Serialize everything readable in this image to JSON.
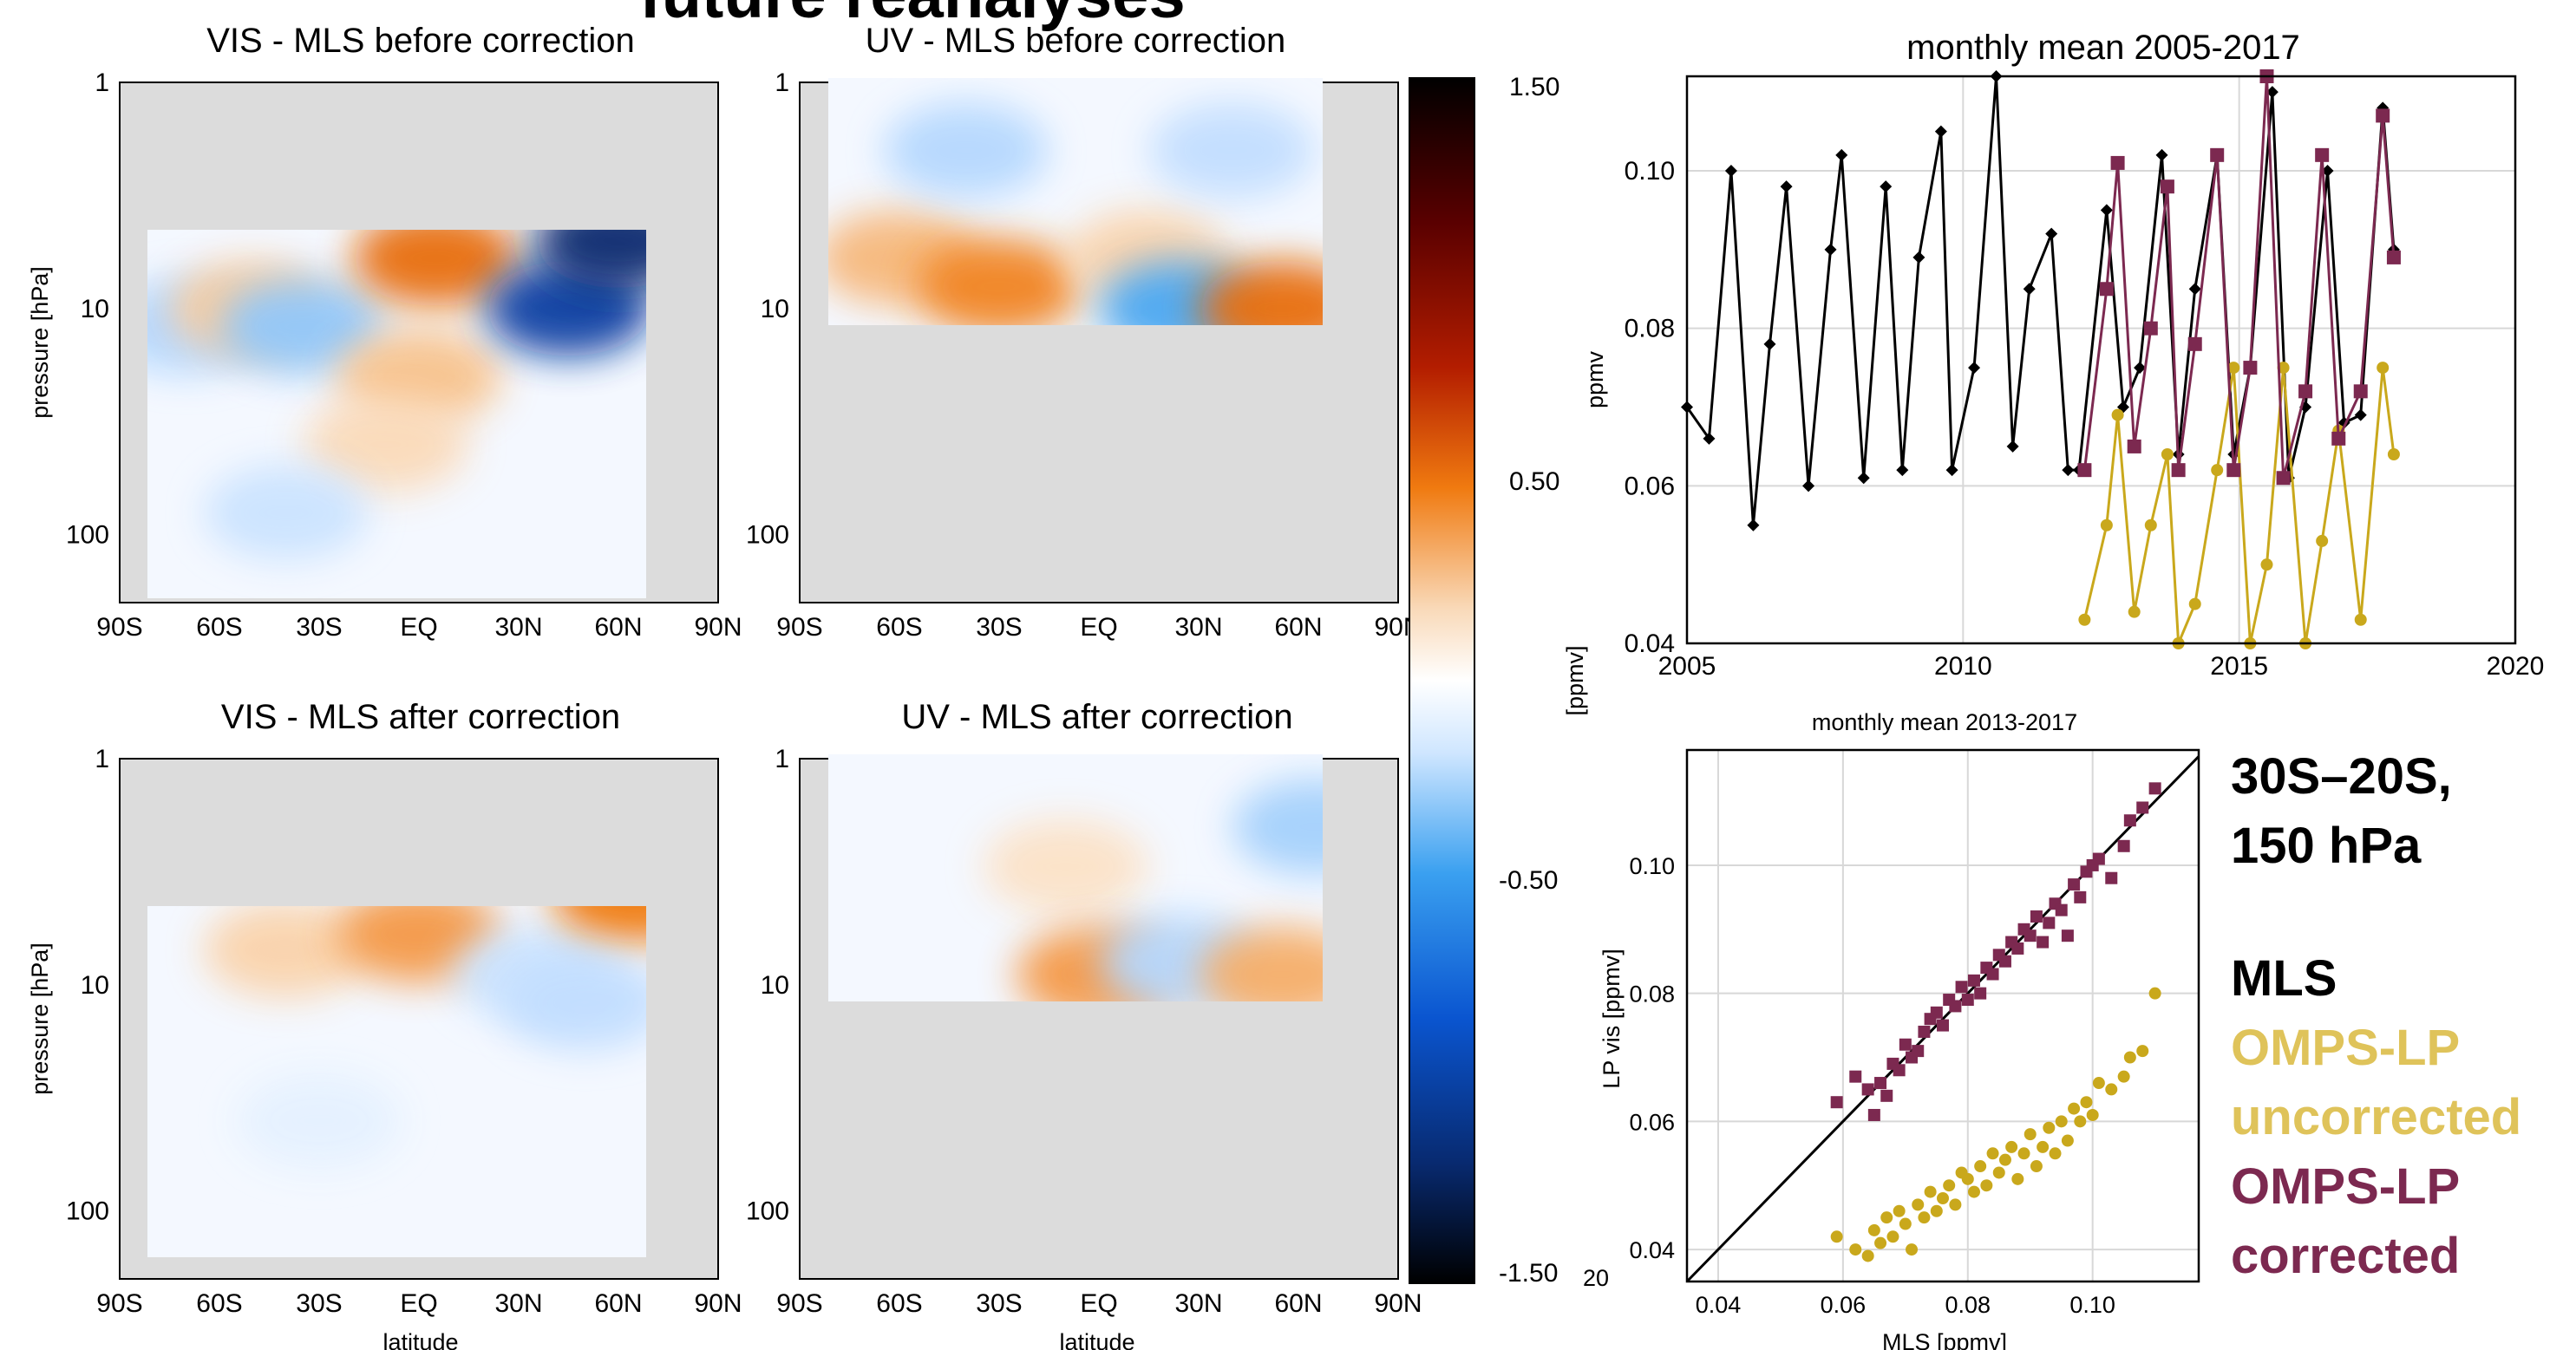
{
  "page": {
    "header": "future reanalyses",
    "location_label": "30S–20S,\n150 hPa",
    "legend": [
      {
        "label": "MLS",
        "color": "#000000"
      },
      {
        "label": "OMPS-LP\nuncorrected",
        "color": "#dfc35a"
      },
      {
        "label": "OMPS-LP\ncorrected",
        "color": "#7c2950"
      }
    ]
  },
  "chart_data": [
    {
      "type": "heatmap",
      "title": "VIS - MLS before correction",
      "ylabel": "pressure [hPa]",
      "xlabel": "",
      "x_ticks": [
        "90S",
        "60S",
        "30S",
        "EQ",
        "30N",
        "60N",
        "90N"
      ],
      "y_ticks": [
        "1",
        "10",
        "100"
      ],
      "y_scale": "log",
      "ylim": [
        200,
        1
      ],
      "cells": [
        {
          "lat": -70,
          "p": 12,
          "value": -0.4
        },
        {
          "lat": -50,
          "p": 10,
          "value": 0.35
        },
        {
          "lat": -35,
          "p": 12,
          "value": -0.5
        },
        {
          "lat": 5,
          "p": 6,
          "value": 0.8
        },
        {
          "lat": 0,
          "p": 20,
          "value": 0.4
        },
        {
          "lat": 45,
          "p": 10,
          "value": -1.3
        },
        {
          "lat": 60,
          "p": 5,
          "value": -1.5
        },
        {
          "lat": -10,
          "p": 40,
          "value": 0.25
        },
        {
          "lat": -40,
          "p": 80,
          "value": -0.3
        }
      ]
    },
    {
      "type": "heatmap",
      "title": "UV - MLS before correction",
      "xlabel": "",
      "x_ticks": [
        "90S",
        "60S",
        "30S",
        "EQ",
        "30N",
        "60N",
        "90N"
      ],
      "y_ticks": [
        "1",
        "10",
        "100"
      ],
      "y_scale": "log",
      "ylim": [
        200,
        1
      ],
      "cells": [
        {
          "lat": -60,
          "p": 6,
          "value": 0.45
        },
        {
          "lat": -30,
          "p": 8,
          "value": 0.7
        },
        {
          "lat": 15,
          "p": 6,
          "value": 0.3
        },
        {
          "lat": 25,
          "p": 10,
          "value": -0.7
        },
        {
          "lat": 55,
          "p": 10,
          "value": 0.8
        },
        {
          "lat": -40,
          "p": 2,
          "value": -0.4
        },
        {
          "lat": 40,
          "p": 2,
          "value": -0.35
        }
      ]
    },
    {
      "type": "heatmap",
      "title": "VIS - MLS after correction",
      "ylabel": "pressure [hPa]",
      "xlabel": "latitude",
      "x_ticks": [
        "90S",
        "60S",
        "30S",
        "EQ",
        "30N",
        "60N",
        "90N"
      ],
      "y_ticks": [
        "1",
        "10",
        "100"
      ],
      "y_scale": "log",
      "ylim": [
        200,
        1
      ],
      "cells": [
        {
          "lat": -40,
          "p": 7,
          "value": 0.3
        },
        {
          "lat": 0,
          "p": 6,
          "value": 0.6
        },
        {
          "lat": 35,
          "p": 9,
          "value": -0.3
        },
        {
          "lat": 65,
          "p": 4,
          "value": 0.75
        },
        {
          "lat": -30,
          "p": 40,
          "value": -0.15
        },
        {
          "lat": 50,
          "p": 12,
          "value": -0.35
        }
      ]
    },
    {
      "type": "heatmap",
      "title": "UV - MLS after correction",
      "xlabel": "latitude",
      "x_ticks": [
        "90S",
        "60S",
        "30S",
        "EQ",
        "30N",
        "60N",
        "90N"
      ],
      "y_ticks": [
        "1",
        "10",
        "100"
      ],
      "y_scale": "log",
      "ylim": [
        200,
        1
      ],
      "cells": [
        {
          "lat": -10,
          "p": 3,
          "value": 0.2
        },
        {
          "lat": 0,
          "p": 9,
          "value": 0.6
        },
        {
          "lat": 25,
          "p": 8,
          "value": -0.4
        },
        {
          "lat": 55,
          "p": 9,
          "value": 0.5
        },
        {
          "lat": 65,
          "p": 2,
          "value": -0.45
        }
      ]
    },
    {
      "type": "colorbar",
      "label": "[ppmv]",
      "ticks": [
        "1.50",
        "0.50",
        "-0.50",
        "-1.50"
      ],
      "range": [
        -1.5,
        1.5
      ]
    },
    {
      "type": "line",
      "title": "monthly mean 2005-2017",
      "ylabel": "ppmv",
      "xlim": [
        2005,
        2020
      ],
      "ylim": [
        0.04,
        0.112
      ],
      "x_ticks": [
        "2005",
        "2010",
        "2015",
        "2020"
      ],
      "y_ticks": [
        "0.04",
        "0.06",
        "0.08",
        "0.10"
      ],
      "grid": true,
      "series": [
        {
          "name": "MLS",
          "color": "#000000",
          "marker": "diamond",
          "x": [
            2005.0,
            2005.4,
            2005.8,
            2006.2,
            2006.5,
            2006.8,
            2007.2,
            2007.6,
            2007.8,
            2008.2,
            2008.6,
            2008.9,
            2009.2,
            2009.6,
            2009.8,
            2010.2,
            2010.6,
            2010.9,
            2011.2,
            2011.6,
            2011.9,
            2012.1,
            2012.6,
            2012.9,
            2013.2,
            2013.6,
            2013.9,
            2014.2,
            2014.6,
            2014.9,
            2015.2,
            2015.6,
            2015.9,
            2016.2,
            2016.6,
            2016.9,
            2017.2,
            2017.6,
            2017.8
          ],
          "y": [
            0.07,
            0.066,
            0.1,
            0.055,
            0.078,
            0.098,
            0.06,
            0.09,
            0.102,
            0.061,
            0.098,
            0.062,
            0.089,
            0.105,
            0.062,
            0.075,
            0.112,
            0.065,
            0.085,
            0.092,
            0.062,
            0.062,
            0.095,
            0.07,
            0.075,
            0.102,
            0.064,
            0.085,
            0.102,
            0.064,
            0.075,
            0.11,
            0.061,
            0.07,
            0.1,
            0.068,
            0.069,
            0.108,
            0.09
          ]
        },
        {
          "name": "OMPS-LP uncorrected",
          "color": "#c9a81c",
          "marker": "circle",
          "x": [
            2012.2,
            2012.6,
            2012.8,
            2013.1,
            2013.4,
            2013.7,
            2013.9,
            2014.2,
            2014.6,
            2014.9,
            2015.2,
            2015.5,
            2015.8,
            2016.2,
            2016.5,
            2016.8,
            2017.2,
            2017.6,
            2017.8
          ],
          "y": [
            0.043,
            0.055,
            0.069,
            0.044,
            0.055,
            0.064,
            0.04,
            0.045,
            0.062,
            0.075,
            0.04,
            0.05,
            0.075,
            0.04,
            0.053,
            0.067,
            0.043,
            0.075,
            0.064
          ]
        },
        {
          "name": "OMPS-LP corrected",
          "color": "#7c2950",
          "marker": "square",
          "x": [
            2012.2,
            2012.6,
            2012.8,
            2013.1,
            2013.4,
            2013.7,
            2013.9,
            2014.2,
            2014.6,
            2014.9,
            2015.2,
            2015.5,
            2015.8,
            2016.2,
            2016.5,
            2016.8,
            2017.2,
            2017.6,
            2017.8
          ],
          "y": [
            0.062,
            0.085,
            0.101,
            0.065,
            0.08,
            0.098,
            0.062,
            0.078,
            0.102,
            0.062,
            0.075,
            0.112,
            0.061,
            0.072,
            0.102,
            0.066,
            0.072,
            0.107,
            0.089
          ]
        }
      ]
    },
    {
      "type": "scatter",
      "title": "monthly mean 2013-2017",
      "xlabel": "MLS [ppmv]",
      "ylabel": "LP vis [ppmv]",
      "xlim": [
        0.035,
        0.117
      ],
      "ylim": [
        0.035,
        0.118
      ],
      "x_ticks": [
        "0.04",
        "0.06",
        "0.08",
        "0.10"
      ],
      "y_ticks": [
        "0.04",
        "0.06",
        "0.08",
        "0.10"
      ],
      "grid": true,
      "one_to_one_line": true,
      "series": [
        {
          "name": "OMPS-LP corrected",
          "color": "#7c2950",
          "marker": "square",
          "x": [
            0.059,
            0.062,
            0.064,
            0.065,
            0.066,
            0.067,
            0.068,
            0.069,
            0.07,
            0.071,
            0.072,
            0.073,
            0.074,
            0.075,
            0.076,
            0.077,
            0.078,
            0.079,
            0.08,
            0.081,
            0.082,
            0.083,
            0.084,
            0.085,
            0.086,
            0.087,
            0.088,
            0.089,
            0.09,
            0.091,
            0.092,
            0.093,
            0.094,
            0.095,
            0.096,
            0.097,
            0.098,
            0.099,
            0.1,
            0.101,
            0.103,
            0.105,
            0.106,
            0.108,
            0.11
          ],
          "y": [
            0.063,
            0.067,
            0.065,
            0.061,
            0.066,
            0.064,
            0.069,
            0.068,
            0.072,
            0.07,
            0.071,
            0.074,
            0.076,
            0.077,
            0.075,
            0.079,
            0.078,
            0.081,
            0.079,
            0.082,
            0.08,
            0.084,
            0.083,
            0.086,
            0.085,
            0.088,
            0.087,
            0.09,
            0.089,
            0.092,
            0.088,
            0.091,
            0.094,
            0.093,
            0.089,
            0.097,
            0.095,
            0.099,
            0.1,
            0.101,
            0.098,
            0.103,
            0.107,
            0.109,
            0.112
          ]
        },
        {
          "name": "OMPS-LP uncorrected",
          "color": "#c9a81c",
          "marker": "circle",
          "x": [
            0.059,
            0.062,
            0.064,
            0.065,
            0.066,
            0.067,
            0.068,
            0.069,
            0.07,
            0.071,
            0.072,
            0.073,
            0.074,
            0.075,
            0.076,
            0.077,
            0.078,
            0.079,
            0.08,
            0.081,
            0.082,
            0.083,
            0.084,
            0.085,
            0.086,
            0.087,
            0.088,
            0.089,
            0.09,
            0.091,
            0.092,
            0.093,
            0.094,
            0.095,
            0.096,
            0.097,
            0.098,
            0.099,
            0.1,
            0.101,
            0.103,
            0.105,
            0.106,
            0.108,
            0.11
          ],
          "y": [
            0.042,
            0.04,
            0.039,
            0.043,
            0.041,
            0.045,
            0.042,
            0.046,
            0.044,
            0.04,
            0.047,
            0.045,
            0.049,
            0.046,
            0.048,
            0.05,
            0.047,
            0.052,
            0.051,
            0.049,
            0.053,
            0.05,
            0.055,
            0.052,
            0.054,
            0.056,
            0.051,
            0.055,
            0.058,
            0.053,
            0.056,
            0.059,
            0.055,
            0.06,
            0.057,
            0.062,
            0.06,
            0.063,
            0.061,
            0.066,
            0.065,
            0.067,
            0.07,
            0.071,
            0.08
          ]
        }
      ]
    }
  ]
}
